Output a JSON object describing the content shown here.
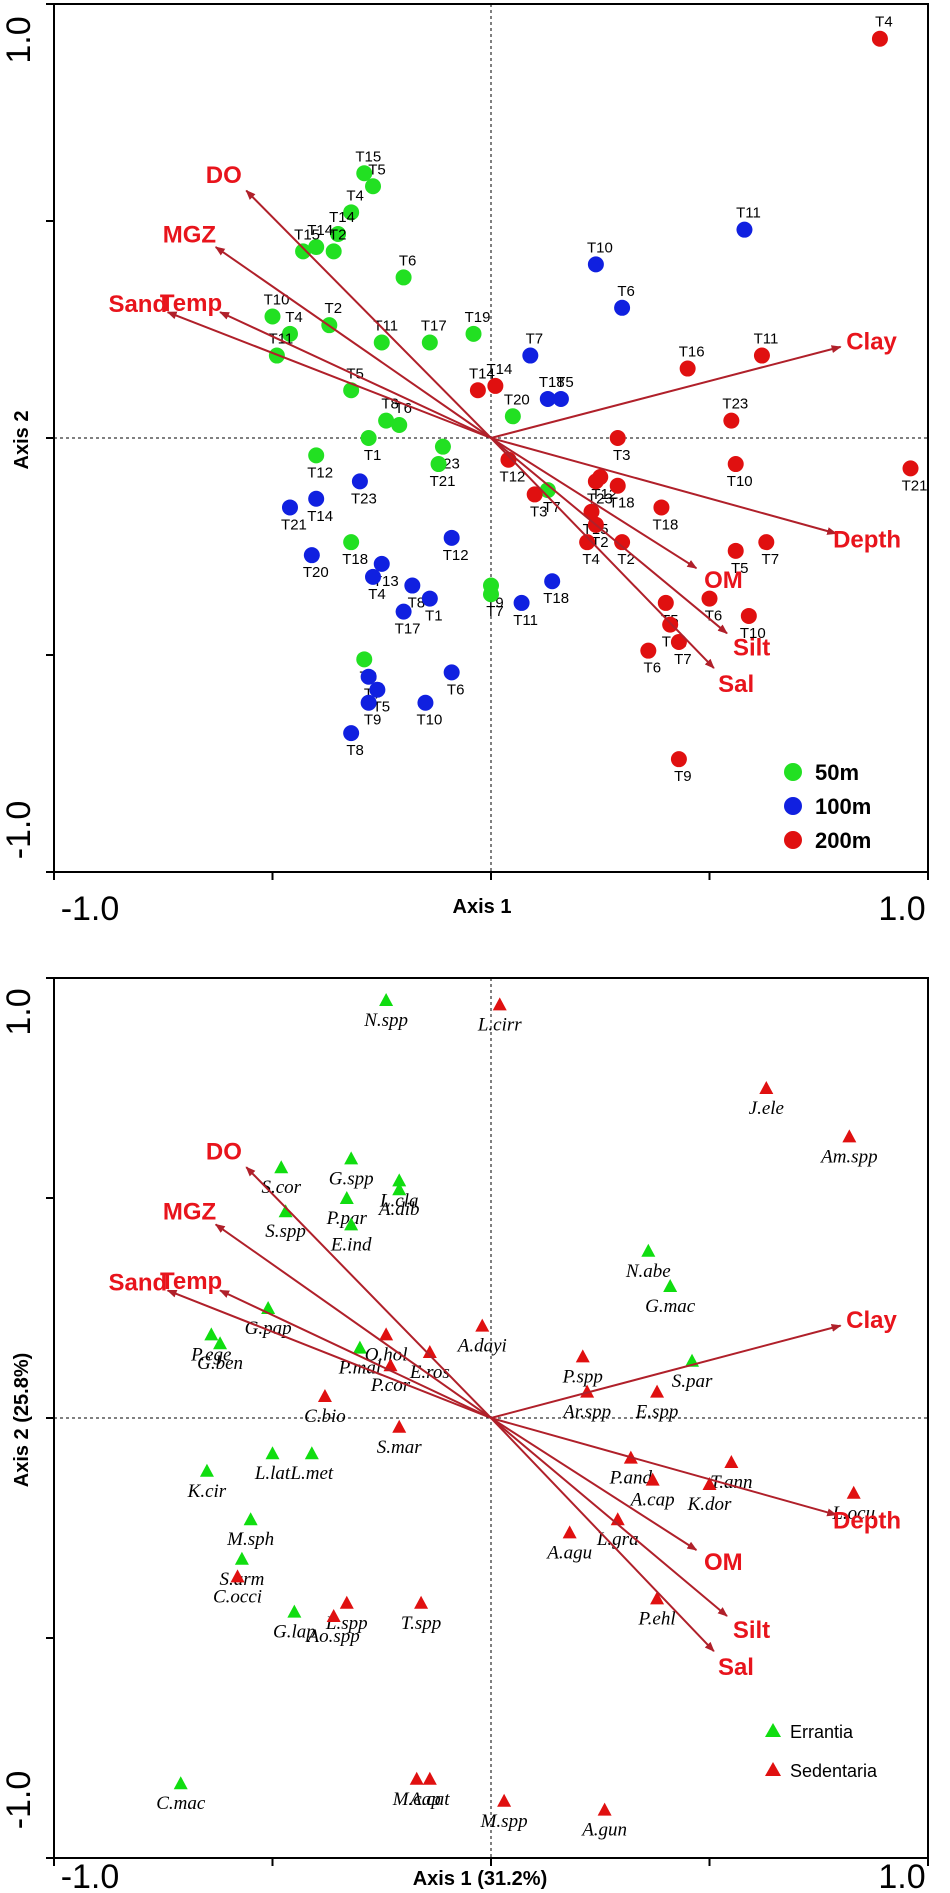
{
  "colors": {
    "arrow": "#b0202a",
    "env_label": "#e8141c",
    "g50": "#22e022",
    "g100": "#1020e0",
    "g200": "#e01010",
    "errantia": "#10dd10",
    "sedentaria": "#e01010"
  },
  "chart_data": [
    {
      "type": "scatter",
      "title": "",
      "xlabel": "Axis 1",
      "ylabel": "Axis 2",
      "xlim": [
        -1.0,
        1.0
      ],
      "ylim": [
        -1.0,
        1.0
      ],
      "xticks": [
        "-1.0",
        "1.0"
      ],
      "yticks": [
        "1.0",
        "-1.0"
      ],
      "legend_position": "bottom-right",
      "legend": [
        {
          "label": "50m",
          "group": "g50"
        },
        {
          "label": "100m",
          "group": "g100"
        },
        {
          "label": "200m",
          "group": "g200"
        }
      ],
      "env_vectors": [
        {
          "label": "DO",
          "x": -0.56,
          "y": 0.57
        },
        {
          "label": "MGZ",
          "x": -0.63,
          "y": 0.44
        },
        {
          "label": "Temp",
          "x": -0.62,
          "y": 0.29
        },
        {
          "label": "Sand",
          "x": -0.74,
          "y": 0.29
        },
        {
          "label": "Clay",
          "x": 0.8,
          "y": 0.21
        },
        {
          "label": "Depth",
          "x": 0.79,
          "y": -0.22
        },
        {
          "label": "OM",
          "x": 0.47,
          "y": -0.3
        },
        {
          "label": "Silt",
          "x": 0.54,
          "y": -0.45
        },
        {
          "label": "Sal",
          "x": 0.51,
          "y": -0.53
        }
      ],
      "series": [
        {
          "name": "50m",
          "group": "g50",
          "points": [
            {
              "label": "T15",
              "x": -0.29,
              "y": 0.61
            },
            {
              "label": "T5",
              "x": -0.27,
              "y": 0.58
            },
            {
              "label": "T4",
              "x": -0.32,
              "y": 0.52
            },
            {
              "label": "T14",
              "x": -0.35,
              "y": 0.47
            },
            {
              "label": "T14",
              "x": -0.4,
              "y": 0.44
            },
            {
              "label": "T15",
              "x": -0.43,
              "y": 0.43
            },
            {
              "label": "T2",
              "x": -0.36,
              "y": 0.43
            },
            {
              "label": "T6",
              "x": -0.2,
              "y": 0.37
            },
            {
              "label": "T10",
              "x": -0.5,
              "y": 0.28
            },
            {
              "label": "T2",
              "x": -0.37,
              "y": 0.26
            },
            {
              "label": "T4",
              "x": -0.46,
              "y": 0.24
            },
            {
              "label": "T11",
              "x": -0.49,
              "y": 0.19
            },
            {
              "label": "T11",
              "x": -0.25,
              "y": 0.22
            },
            {
              "label": "T17",
              "x": -0.14,
              "y": 0.22
            },
            {
              "label": "T19",
              "x": -0.04,
              "y": 0.24
            },
            {
              "label": "T5",
              "x": -0.32,
              "y": 0.11
            },
            {
              "label": "T20",
              "x": 0.05,
              "y": 0.05
            },
            {
              "label": "T8",
              "x": -0.24,
              "y": 0.04
            },
            {
              "label": "T6",
              "x": -0.21,
              "y": 0.03
            },
            {
              "label": "T1",
              "x": -0.28,
              "y": 0.0
            },
            {
              "label": "T23",
              "x": -0.11,
              "y": -0.02
            },
            {
              "label": "T12",
              "x": -0.4,
              "y": -0.04
            },
            {
              "label": "T21",
              "x": -0.12,
              "y": -0.06
            },
            {
              "label": "T7",
              "x": 0.13,
              "y": -0.12
            },
            {
              "label": "T18",
              "x": -0.32,
              "y": -0.24
            },
            {
              "label": "T9",
              "x": 0.0,
              "y": -0.34
            },
            {
              "label": "T7",
              "x": 0.0,
              "y": -0.36
            },
            {
              "label": "T8",
              "x": -0.29,
              "y": -0.51
            }
          ]
        },
        {
          "name": "100m",
          "group": "g100",
          "points": [
            {
              "label": "T11",
              "x": 0.58,
              "y": 0.48
            },
            {
              "label": "T10",
              "x": 0.24,
              "y": 0.4
            },
            {
              "label": "T6",
              "x": 0.3,
              "y": 0.3
            },
            {
              "label": "T7",
              "x": 0.09,
              "y": 0.19
            },
            {
              "label": "T18",
              "x": 0.13,
              "y": 0.09
            },
            {
              "label": "T5",
              "x": 0.16,
              "y": 0.09
            },
            {
              "label": "T21",
              "x": -0.46,
              "y": -0.16
            },
            {
              "label": "T14",
              "x": -0.4,
              "y": -0.14
            },
            {
              "label": "T23",
              "x": -0.3,
              "y": -0.1
            },
            {
              "label": "T20",
              "x": -0.41,
              "y": -0.27
            },
            {
              "label": "T13",
              "x": -0.25,
              "y": -0.29
            },
            {
              "label": "T12",
              "x": -0.09,
              "y": -0.23
            },
            {
              "label": "T4",
              "x": -0.27,
              "y": -0.32
            },
            {
              "label": "T8",
              "x": -0.18,
              "y": -0.34
            },
            {
              "label": "T1",
              "x": -0.14,
              "y": -0.37
            },
            {
              "label": "T17",
              "x": -0.2,
              "y": -0.4
            },
            {
              "label": "T18",
              "x": 0.14,
              "y": -0.33
            },
            {
              "label": "T11",
              "x": 0.07,
              "y": -0.38
            },
            {
              "label": "T7",
              "x": -0.28,
              "y": -0.55
            },
            {
              "label": "T5",
              "x": -0.26,
              "y": -0.58
            },
            {
              "label": "T6",
              "x": -0.09,
              "y": -0.54
            },
            {
              "label": "T9",
              "x": -0.28,
              "y": -0.61
            },
            {
              "label": "T10",
              "x": -0.15,
              "y": -0.61
            },
            {
              "label": "T8",
              "x": -0.32,
              "y": -0.68
            }
          ]
        },
        {
          "name": "200m",
          "group": "g200",
          "points": [
            {
              "label": "T4",
              "x": 0.89,
              "y": 0.92
            },
            {
              "label": "T11",
              "x": 0.62,
              "y": 0.19
            },
            {
              "label": "T16",
              "x": 0.45,
              "y": 0.16
            },
            {
              "label": "T23",
              "x": 0.55,
              "y": 0.04
            },
            {
              "label": "T14",
              "x": -0.03,
              "y": 0.11
            },
            {
              "label": "T14",
              "x": 0.01,
              "y": 0.12
            },
            {
              "label": "T3",
              "x": 0.29,
              "y": 0.0
            },
            {
              "label": "T21",
              "x": 0.96,
              "y": -0.07
            },
            {
              "label": "T10",
              "x": 0.56,
              "y": -0.06
            },
            {
              "label": "T12",
              "x": 0.04,
              "y": -0.05
            },
            {
              "label": "T12",
              "x": 0.25,
              "y": -0.09
            },
            {
              "label": "T23",
              "x": 0.24,
              "y": -0.1
            },
            {
              "label": "T18",
              "x": 0.29,
              "y": -0.11
            },
            {
              "label": "T3",
              "x": 0.1,
              "y": -0.13
            },
            {
              "label": "T15",
              "x": 0.23,
              "y": -0.17
            },
            {
              "label": "T18",
              "x": 0.39,
              "y": -0.16
            },
            {
              "label": "T2",
              "x": 0.24,
              "y": -0.2
            },
            {
              "label": "T4",
              "x": 0.22,
              "y": -0.24
            },
            {
              "label": "T2",
              "x": 0.3,
              "y": -0.24
            },
            {
              "label": "T5",
              "x": 0.56,
              "y": -0.26
            },
            {
              "label": "T7",
              "x": 0.63,
              "y": -0.24
            },
            {
              "label": "T5",
              "x": 0.4,
              "y": -0.38
            },
            {
              "label": "T6",
              "x": 0.5,
              "y": -0.37
            },
            {
              "label": "T10",
              "x": 0.59,
              "y": -0.41
            },
            {
              "label": "T11",
              "x": 0.41,
              "y": -0.43
            },
            {
              "label": "T7",
              "x": 0.43,
              "y": -0.47
            },
            {
              "label": "T6",
              "x": 0.36,
              "y": -0.49
            },
            {
              "label": "T9",
              "x": 0.43,
              "y": -0.74
            }
          ]
        }
      ]
    },
    {
      "type": "scatter",
      "title": "",
      "xlabel": "Axis 1 (31.2%)",
      "ylabel": "Axis 2 (25.8%)",
      "xlim": [
        -1.0,
        1.0
      ],
      "ylim": [
        -1.0,
        1.0
      ],
      "xticks": [
        "-1.0",
        "1.0"
      ],
      "yticks": [
        "1.0",
        "-1.0"
      ],
      "legend_position": "bottom-right",
      "legend": [
        {
          "label": "Errantia",
          "group": "errantia"
        },
        {
          "label": "Sedentaria",
          "group": "sedentaria"
        }
      ],
      "env_vectors": [
        {
          "label": "DO",
          "x": -0.56,
          "y": 0.57
        },
        {
          "label": "MGZ",
          "x": -0.63,
          "y": 0.44
        },
        {
          "label": "Temp",
          "x": -0.62,
          "y": 0.29
        },
        {
          "label": "Sand",
          "x": -0.74,
          "y": 0.29
        },
        {
          "label": "Clay",
          "x": 0.8,
          "y": 0.21
        },
        {
          "label": "Depth",
          "x": 0.79,
          "y": -0.22
        },
        {
          "label": "OM",
          "x": 0.47,
          "y": -0.3
        },
        {
          "label": "Silt",
          "x": 0.54,
          "y": -0.45
        },
        {
          "label": "Sal",
          "x": 0.51,
          "y": -0.53
        }
      ],
      "series": [
        {
          "name": "Errantia",
          "group": "errantia",
          "points": [
            {
              "label": "N.spp",
              "x": -0.24,
              "y": 0.95
            },
            {
              "label": "G.spp",
              "x": -0.32,
              "y": 0.59
            },
            {
              "label": "S.cor",
              "x": -0.48,
              "y": 0.57
            },
            {
              "label": "L.cla",
              "x": -0.21,
              "y": 0.54
            },
            {
              "label": "A.dib",
              "x": -0.21,
              "y": 0.52
            },
            {
              "label": "P.par",
              "x": -0.33,
              "y": 0.5
            },
            {
              "label": "S.spp",
              "x": -0.47,
              "y": 0.47
            },
            {
              "label": "E.ind",
              "x": -0.32,
              "y": 0.44
            },
            {
              "label": "N.abe",
              "x": 0.36,
              "y": 0.38
            },
            {
              "label": "G.mac",
              "x": 0.41,
              "y": 0.3
            },
            {
              "label": "G.pap",
              "x": -0.51,
              "y": 0.25
            },
            {
              "label": "P.ege",
              "x": -0.64,
              "y": 0.19
            },
            {
              "label": "G.ben",
              "x": -0.62,
              "y": 0.17
            },
            {
              "label": "P.mal",
              "x": -0.3,
              "y": 0.16
            },
            {
              "label": "S.par",
              "x": 0.46,
              "y": 0.13
            },
            {
              "label": "L.lat",
              "x": -0.5,
              "y": -0.08
            },
            {
              "label": "L.met",
              "x": -0.41,
              "y": -0.08
            },
            {
              "label": "K.cir",
              "x": -0.65,
              "y": -0.12
            },
            {
              "label": "M.sph",
              "x": -0.55,
              "y": -0.23
            },
            {
              "label": "S.arm",
              "x": -0.57,
              "y": -0.32
            },
            {
              "label": "G.lap",
              "x": -0.45,
              "y": -0.44
            },
            {
              "label": "C.mac",
              "x": -0.71,
              "y": -0.83
            }
          ]
        },
        {
          "name": "Sedentaria",
          "group": "sedentaria",
          "points": [
            {
              "label": "L.cirr",
              "x": 0.02,
              "y": 0.94
            },
            {
              "label": "J.ele",
              "x": 0.63,
              "y": 0.75
            },
            {
              "label": "Am.spp",
              "x": 0.82,
              "y": 0.64
            },
            {
              "label": "O.hol",
              "x": -0.24,
              "y": 0.19
            },
            {
              "label": "E.ros",
              "x": -0.14,
              "y": 0.15
            },
            {
              "label": "A.dayi",
              "x": -0.02,
              "y": 0.21
            },
            {
              "label": "P.spp",
              "x": 0.21,
              "y": 0.14
            },
            {
              "label": "C.bio",
              "x": -0.38,
              "y": 0.05
            },
            {
              "label": "P.cor",
              "x": -0.23,
              "y": 0.12
            },
            {
              "label": "Ar.spp",
              "x": 0.22,
              "y": 0.06
            },
            {
              "label": "E.spp",
              "x": 0.38,
              "y": 0.06
            },
            {
              "label": "S.mar",
              "x": -0.21,
              "y": -0.02
            },
            {
              "label": "T.ann",
              "x": 0.55,
              "y": -0.1
            },
            {
              "label": "P.and",
              "x": 0.32,
              "y": -0.09
            },
            {
              "label": "A.cap",
              "x": 0.37,
              "y": -0.14
            },
            {
              "label": "K.dor",
              "x": 0.5,
              "y": -0.15
            },
            {
              "label": "L.ocu",
              "x": 0.83,
              "y": -0.17
            },
            {
              "label": "L.gra",
              "x": 0.29,
              "y": -0.23
            },
            {
              "label": "A.agu",
              "x": 0.18,
              "y": -0.26
            },
            {
              "label": "P.ehl",
              "x": 0.38,
              "y": -0.41
            },
            {
              "label": "L.spp",
              "x": -0.33,
              "y": -0.42
            },
            {
              "label": "T.spp",
              "x": -0.16,
              "y": -0.42
            },
            {
              "label": "Ao.spp",
              "x": -0.36,
              "y": -0.45
            },
            {
              "label": "M.cap",
              "x": -0.17,
              "y": -0.82
            },
            {
              "label": "A.cat",
              "x": -0.14,
              "y": -0.82
            },
            {
              "label": "M.spp",
              "x": 0.03,
              "y": -0.87
            },
            {
              "label": "A.gun",
              "x": 0.26,
              "y": -0.89
            },
            {
              "label": "C.occi",
              "x": -0.58,
              "y": -0.36
            }
          ]
        }
      ]
    }
  ]
}
